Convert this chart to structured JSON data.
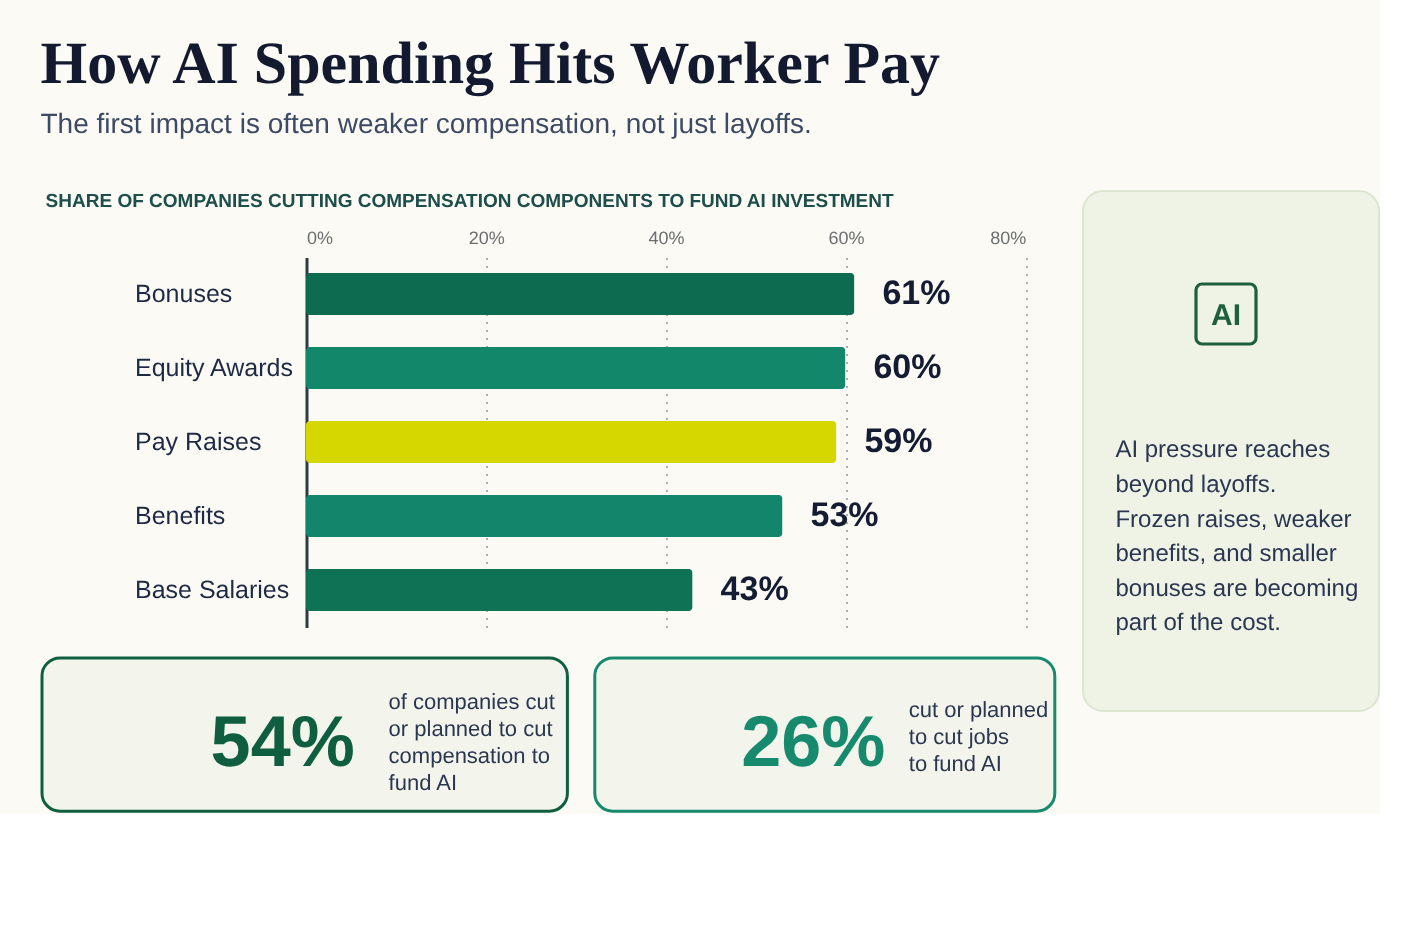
{
  "chart_data": [
    {
      "type": "bar",
      "title": "How AI Spending Hits Worker Pay",
      "subtitle": "The first impact is often weaker compensation, not just layoffs.",
      "xlabel": "SHARE OF COMPANIES CUTTING COMPENSATION COMPONENTS TO FUND AI INVESTMENT",
      "orientation": "horizontal",
      "categories": [
        "Bonuses",
        "Equity Awards",
        "Pay Raises",
        "Benefits",
        "Base Salaries"
      ],
      "values": [
        61,
        60,
        59,
        53,
        43
      ],
      "colors": [
        "#0d6b4f",
        "#13876a",
        "#d6d600",
        "#12856a",
        "#0f7255"
      ],
      "value_labels": [
        "61%",
        "60%",
        "59%",
        "53%",
        "43%"
      ],
      "xlim": [
        0,
        80
      ],
      "xticks": [
        {
          "value": 0,
          "label": "0%"
        },
        {
          "value": 20,
          "label": "20%"
        },
        {
          "value": 40,
          "label": "40%"
        },
        {
          "value": 60,
          "label": "60%"
        },
        {
          "value": 80,
          "label": "80%"
        }
      ],
      "grid": "x"
    },
    {
      "type": "other",
      "color": "#1f5f3e",
      "annotations": [
        "AI",
        "AI pressure reaches beyond layoffs. Frozen raises, weaker benefits, and smaller bonuses are becoming part of the cost."
      ]
    },
    {
      "type": "other",
      "color": "#0f5e40",
      "annotations": [
        "54%",
        "of companies cut or planned to cut compensation to fund AI"
      ]
    },
    {
      "type": "other",
      "color": "#17896d",
      "annotations": [
        "26%",
        "cut or planned to cut jobs to fund AI"
      ]
    }
  ]
}
